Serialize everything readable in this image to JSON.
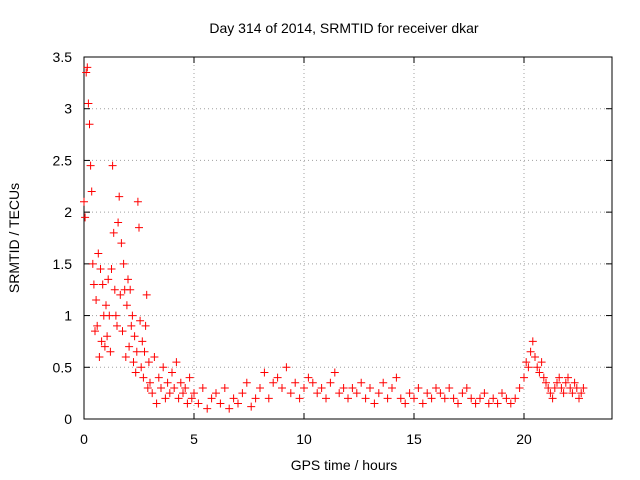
{
  "chart_data": {
    "type": "scatter",
    "title": "Day 314 of 2014, SRMTID for receiver dkar",
    "xlabel": "GPS time / hours",
    "ylabel": "SRMTID / TECUs",
    "xlim": [
      0,
      24
    ],
    "ylim": [
      0,
      3.5
    ],
    "grid": true,
    "marker": "+",
    "color": "#ff0000",
    "xticks": [
      0,
      5,
      10,
      15,
      20
    ],
    "yticks": [
      0,
      0.5,
      1,
      1.5,
      2,
      2.5,
      3,
      3.5
    ],
    "xtick_labels": [
      "0",
      "5",
      "10",
      "15",
      "20"
    ],
    "ytick_labels": [
      "0",
      "0.5",
      "1",
      "1.5",
      "2",
      "2.5",
      "3",
      "3.5"
    ],
    "series": [
      {
        "name": "SRMTID",
        "x": [
          0.0,
          0.05,
          0.1,
          0.15,
          0.2,
          0.25,
          0.3,
          0.35,
          0.4,
          0.45,
          0.5,
          0.55,
          0.6,
          0.65,
          0.7,
          0.75,
          0.8,
          0.85,
          0.9,
          0.95,
          1.0,
          1.05,
          1.1,
          1.15,
          1.2,
          1.25,
          1.3,
          1.35,
          1.4,
          1.45,
          1.5,
          1.55,
          1.6,
          1.65,
          1.7,
          1.75,
          1.8,
          1.85,
          1.9,
          1.95,
          2.0,
          2.05,
          2.1,
          2.15,
          2.2,
          2.25,
          2.3,
          2.35,
          2.4,
          2.45,
          2.5,
          2.55,
          2.6,
          2.65,
          2.7,
          2.75,
          2.8,
          2.85,
          2.9,
          2.95,
          3.0,
          3.1,
          3.2,
          3.3,
          3.4,
          3.5,
          3.6,
          3.7,
          3.8,
          3.9,
          4.0,
          4.1,
          4.2,
          4.3,
          4.4,
          4.5,
          4.6,
          4.7,
          4.8,
          4.9,
          5.0,
          5.2,
          5.4,
          5.6,
          5.8,
          6.0,
          6.2,
          6.4,
          6.6,
          6.8,
          7.0,
          7.2,
          7.4,
          7.6,
          7.8,
          8.0,
          8.2,
          8.4,
          8.6,
          8.8,
          9.0,
          9.2,
          9.4,
          9.6,
          9.8,
          10.0,
          10.2,
          10.4,
          10.6,
          10.8,
          11.0,
          11.2,
          11.4,
          11.6,
          11.8,
          12.0,
          12.2,
          12.4,
          12.6,
          12.8,
          13.0,
          13.2,
          13.4,
          13.6,
          13.8,
          14.0,
          14.2,
          14.4,
          14.6,
          14.8,
          15.0,
          15.2,
          15.4,
          15.6,
          15.8,
          16.0,
          16.2,
          16.4,
          16.6,
          16.8,
          17.0,
          17.2,
          17.4,
          17.6,
          17.8,
          18.0,
          18.2,
          18.4,
          18.6,
          18.8,
          19.0,
          19.2,
          19.4,
          19.6,
          19.8,
          20.0,
          20.1,
          20.2,
          20.3,
          20.4,
          20.5,
          20.6,
          20.7,
          20.8,
          20.9,
          21.0,
          21.1,
          21.2,
          21.3,
          21.4,
          21.5,
          21.6,
          21.7,
          21.8,
          21.9,
          22.0,
          22.1,
          22.2,
          22.3,
          22.4,
          22.5,
          22.6,
          22.7
        ],
        "y": [
          2.1,
          1.95,
          3.35,
          3.4,
          3.05,
          2.85,
          2.45,
          2.2,
          1.5,
          1.3,
          0.85,
          1.15,
          0.9,
          1.6,
          0.6,
          1.45,
          0.75,
          1.3,
          1.0,
          0.7,
          1.1,
          0.8,
          1.35,
          1.0,
          0.65,
          1.45,
          2.45,
          1.8,
          1.25,
          1.0,
          0.9,
          1.9,
          2.15,
          1.2,
          1.7,
          0.85,
          1.5,
          1.25,
          0.6,
          1.1,
          1.35,
          0.7,
          1.25,
          0.9,
          1.0,
          0.55,
          0.8,
          0.45,
          0.65,
          2.1,
          1.85,
          0.95,
          0.5,
          0.75,
          0.4,
          0.65,
          0.9,
          1.2,
          0.3,
          0.55,
          0.35,
          0.25,
          0.6,
          0.15,
          0.4,
          0.3,
          0.5,
          0.2,
          0.35,
          0.25,
          0.45,
          0.3,
          0.55,
          0.2,
          0.35,
          0.25,
          0.3,
          0.15,
          0.4,
          0.2,
          0.25,
          0.15,
          0.3,
          0.1,
          0.2,
          0.25,
          0.15,
          0.3,
          0.1,
          0.2,
          0.15,
          0.25,
          0.35,
          0.12,
          0.2,
          0.3,
          0.45,
          0.2,
          0.35,
          0.4,
          0.3,
          0.5,
          0.25,
          0.35,
          0.2,
          0.3,
          0.4,
          0.35,
          0.25,
          0.3,
          0.2,
          0.35,
          0.45,
          0.25,
          0.3,
          0.2,
          0.3,
          0.25,
          0.35,
          0.2,
          0.3,
          0.15,
          0.25,
          0.35,
          0.2,
          0.3,
          0.4,
          0.2,
          0.15,
          0.25,
          0.2,
          0.3,
          0.15,
          0.25,
          0.2,
          0.3,
          0.25,
          0.2,
          0.3,
          0.2,
          0.15,
          0.25,
          0.3,
          0.2,
          0.15,
          0.2,
          0.25,
          0.15,
          0.2,
          0.15,
          0.25,
          0.2,
          0.15,
          0.2,
          0.3,
          0.4,
          0.55,
          0.5,
          0.65,
          0.75,
          0.6,
          0.5,
          0.45,
          0.55,
          0.4,
          0.35,
          0.3,
          0.25,
          0.2,
          0.3,
          0.35,
          0.4,
          0.3,
          0.25,
          0.35,
          0.4,
          0.3,
          0.25,
          0.35,
          0.3,
          0.2,
          0.25,
          0.3
        ]
      }
    ]
  }
}
